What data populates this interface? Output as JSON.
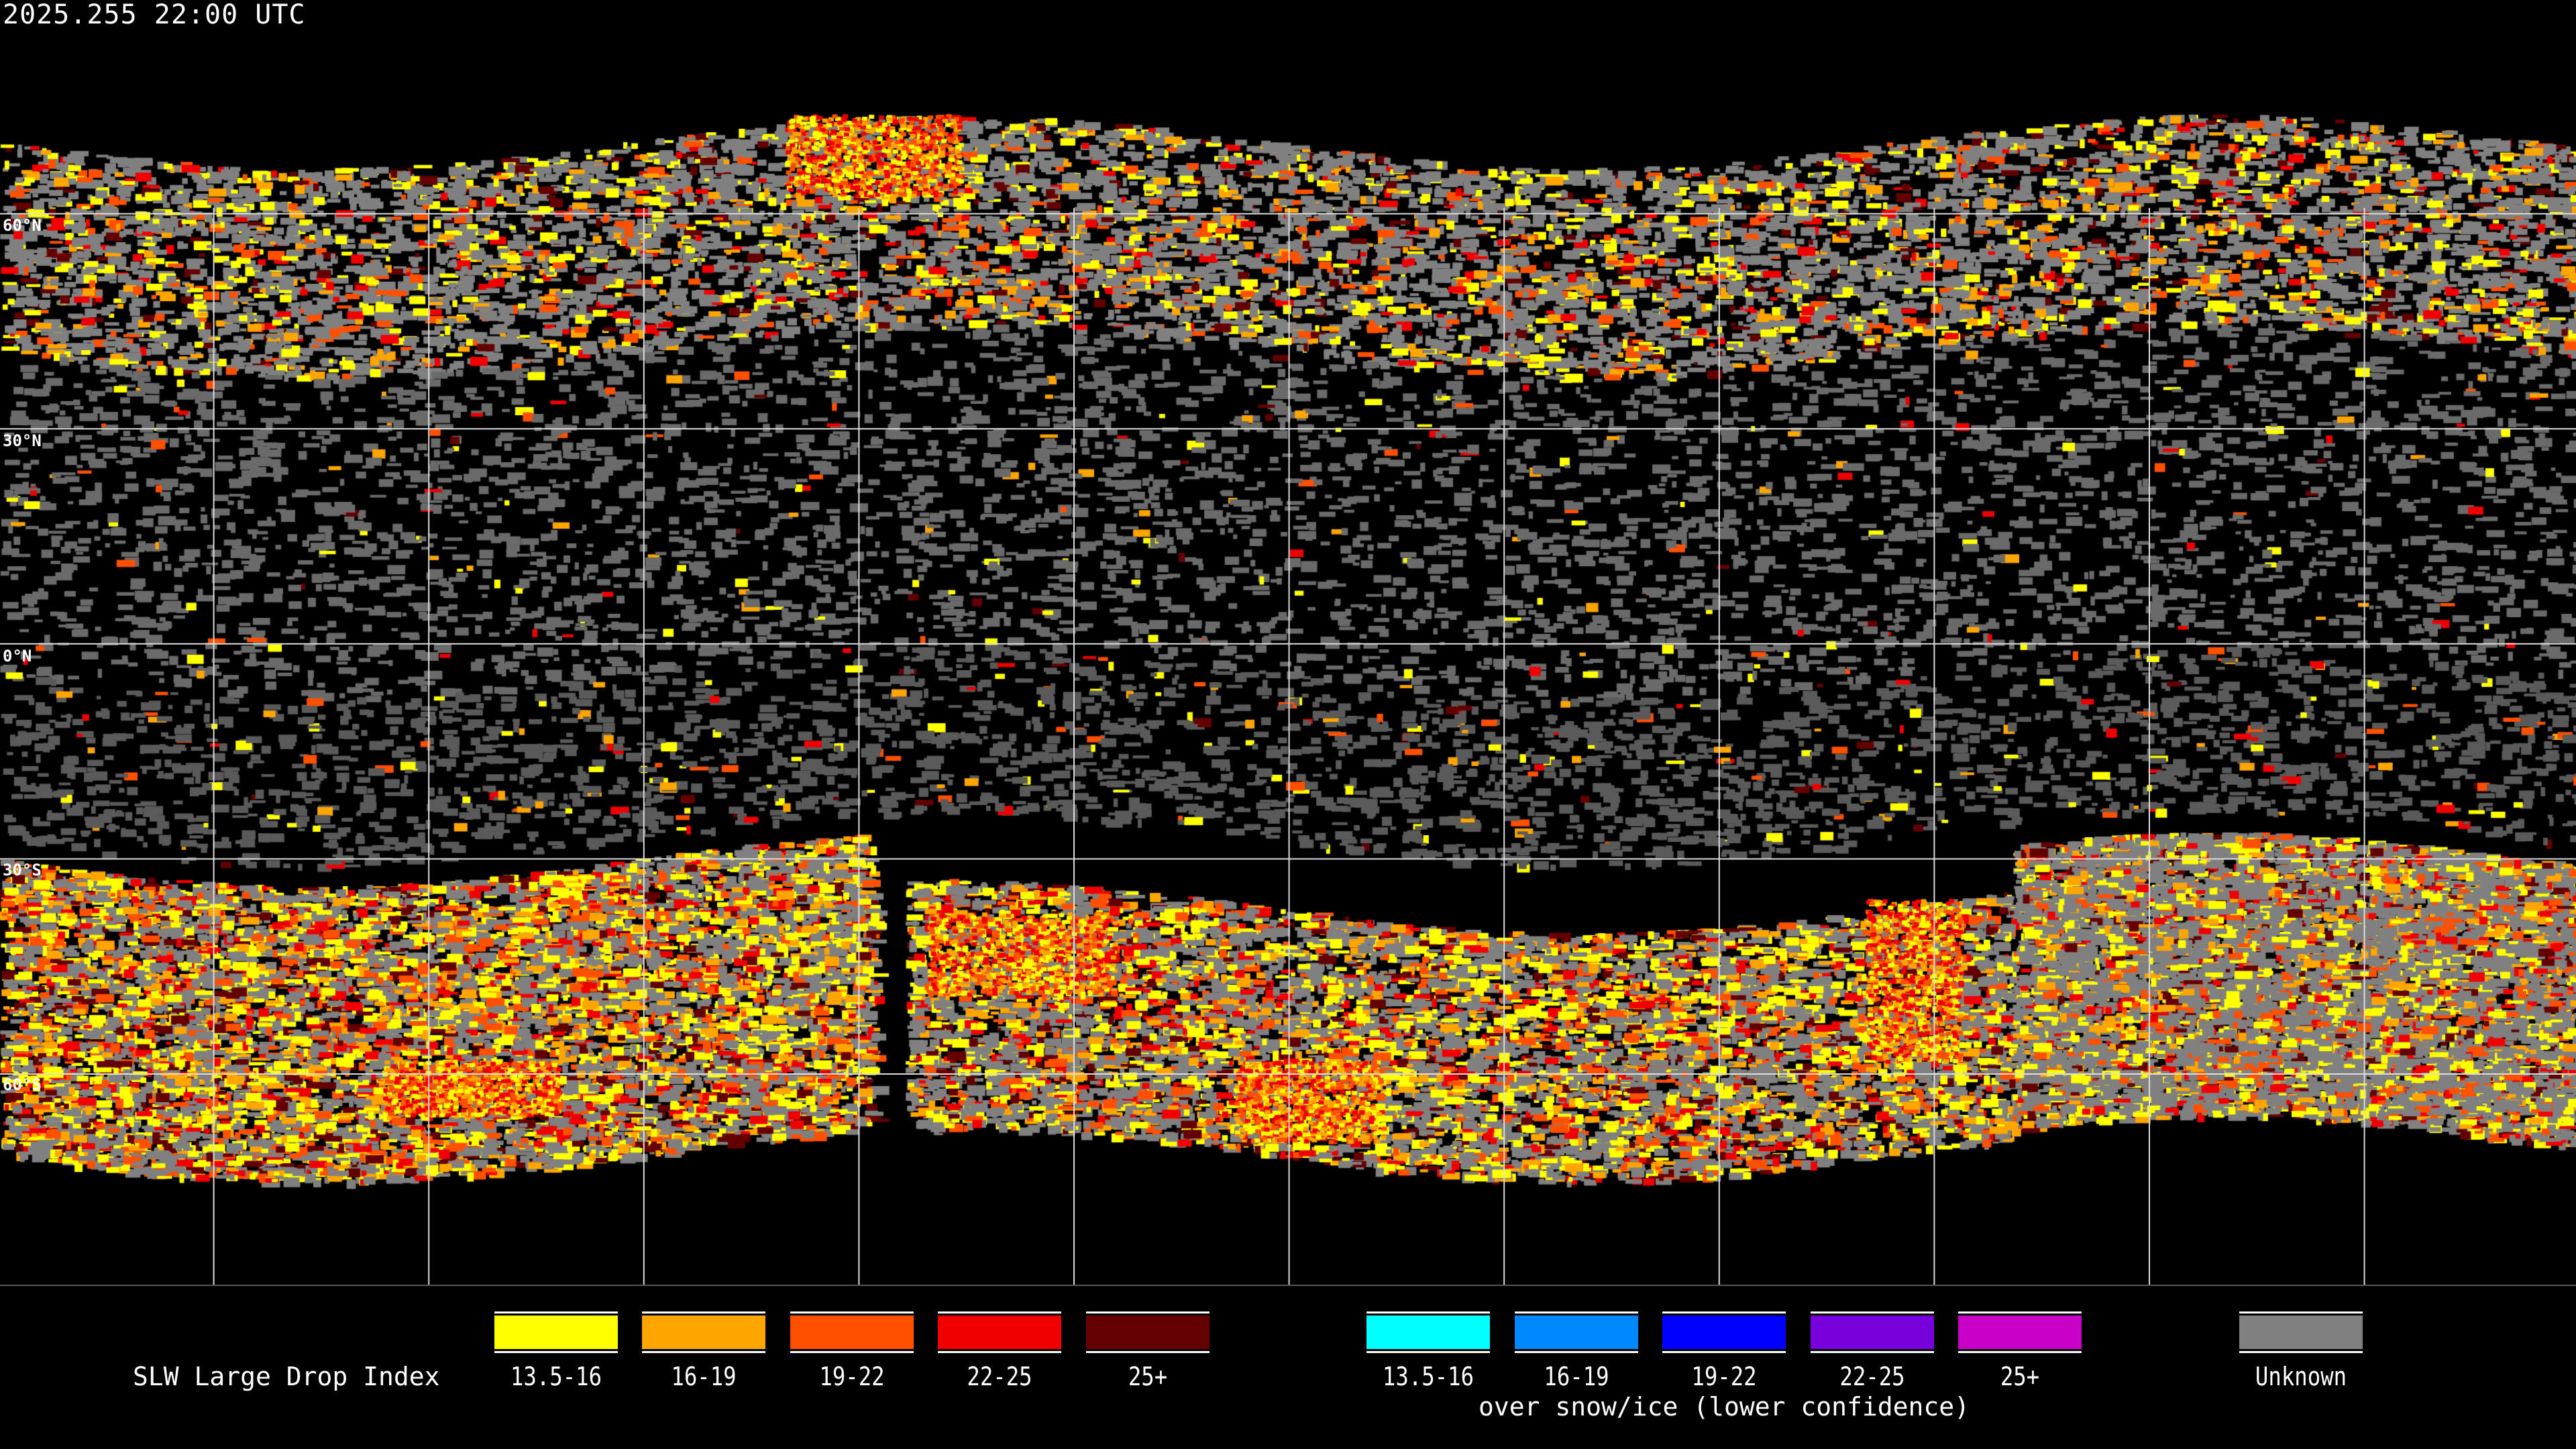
{
  "title": "2025.255 22:00 UTC",
  "map": {
    "projection": "equirectangular",
    "grid_spacing_deg": 30,
    "lat_labels": [
      "60°N",
      "30°N",
      "0°N",
      "30°S",
      "60°S"
    ],
    "colors": {
      "background": "#000000",
      "grid": "#ffffff",
      "coastline": "#ffffff"
    }
  },
  "legend": {
    "title": "SLW Large Drop Index",
    "primary": [
      {
        "label": "13.5-16",
        "color": "#ffff00"
      },
      {
        "label": "16-19",
        "color": "#ffa500"
      },
      {
        "label": "19-22",
        "color": "#ff5000"
      },
      {
        "label": "22-25",
        "color": "#f00000"
      },
      {
        "label": "25+",
        "color": "#640000"
      }
    ],
    "snow_ice": [
      {
        "label": "13.5-16",
        "color": "#00ffff"
      },
      {
        "label": "16-19",
        "color": "#0088ff"
      },
      {
        "label": "19-22",
        "color": "#0000ff"
      },
      {
        "label": "22-25",
        "color": "#7800dc"
      },
      {
        "label": "25+",
        "color": "#c800c8"
      }
    ],
    "snow_ice_caption": "over snow/ice (lower confidence)",
    "unknown": {
      "label": "Unknown",
      "color": "#808080"
    }
  }
}
